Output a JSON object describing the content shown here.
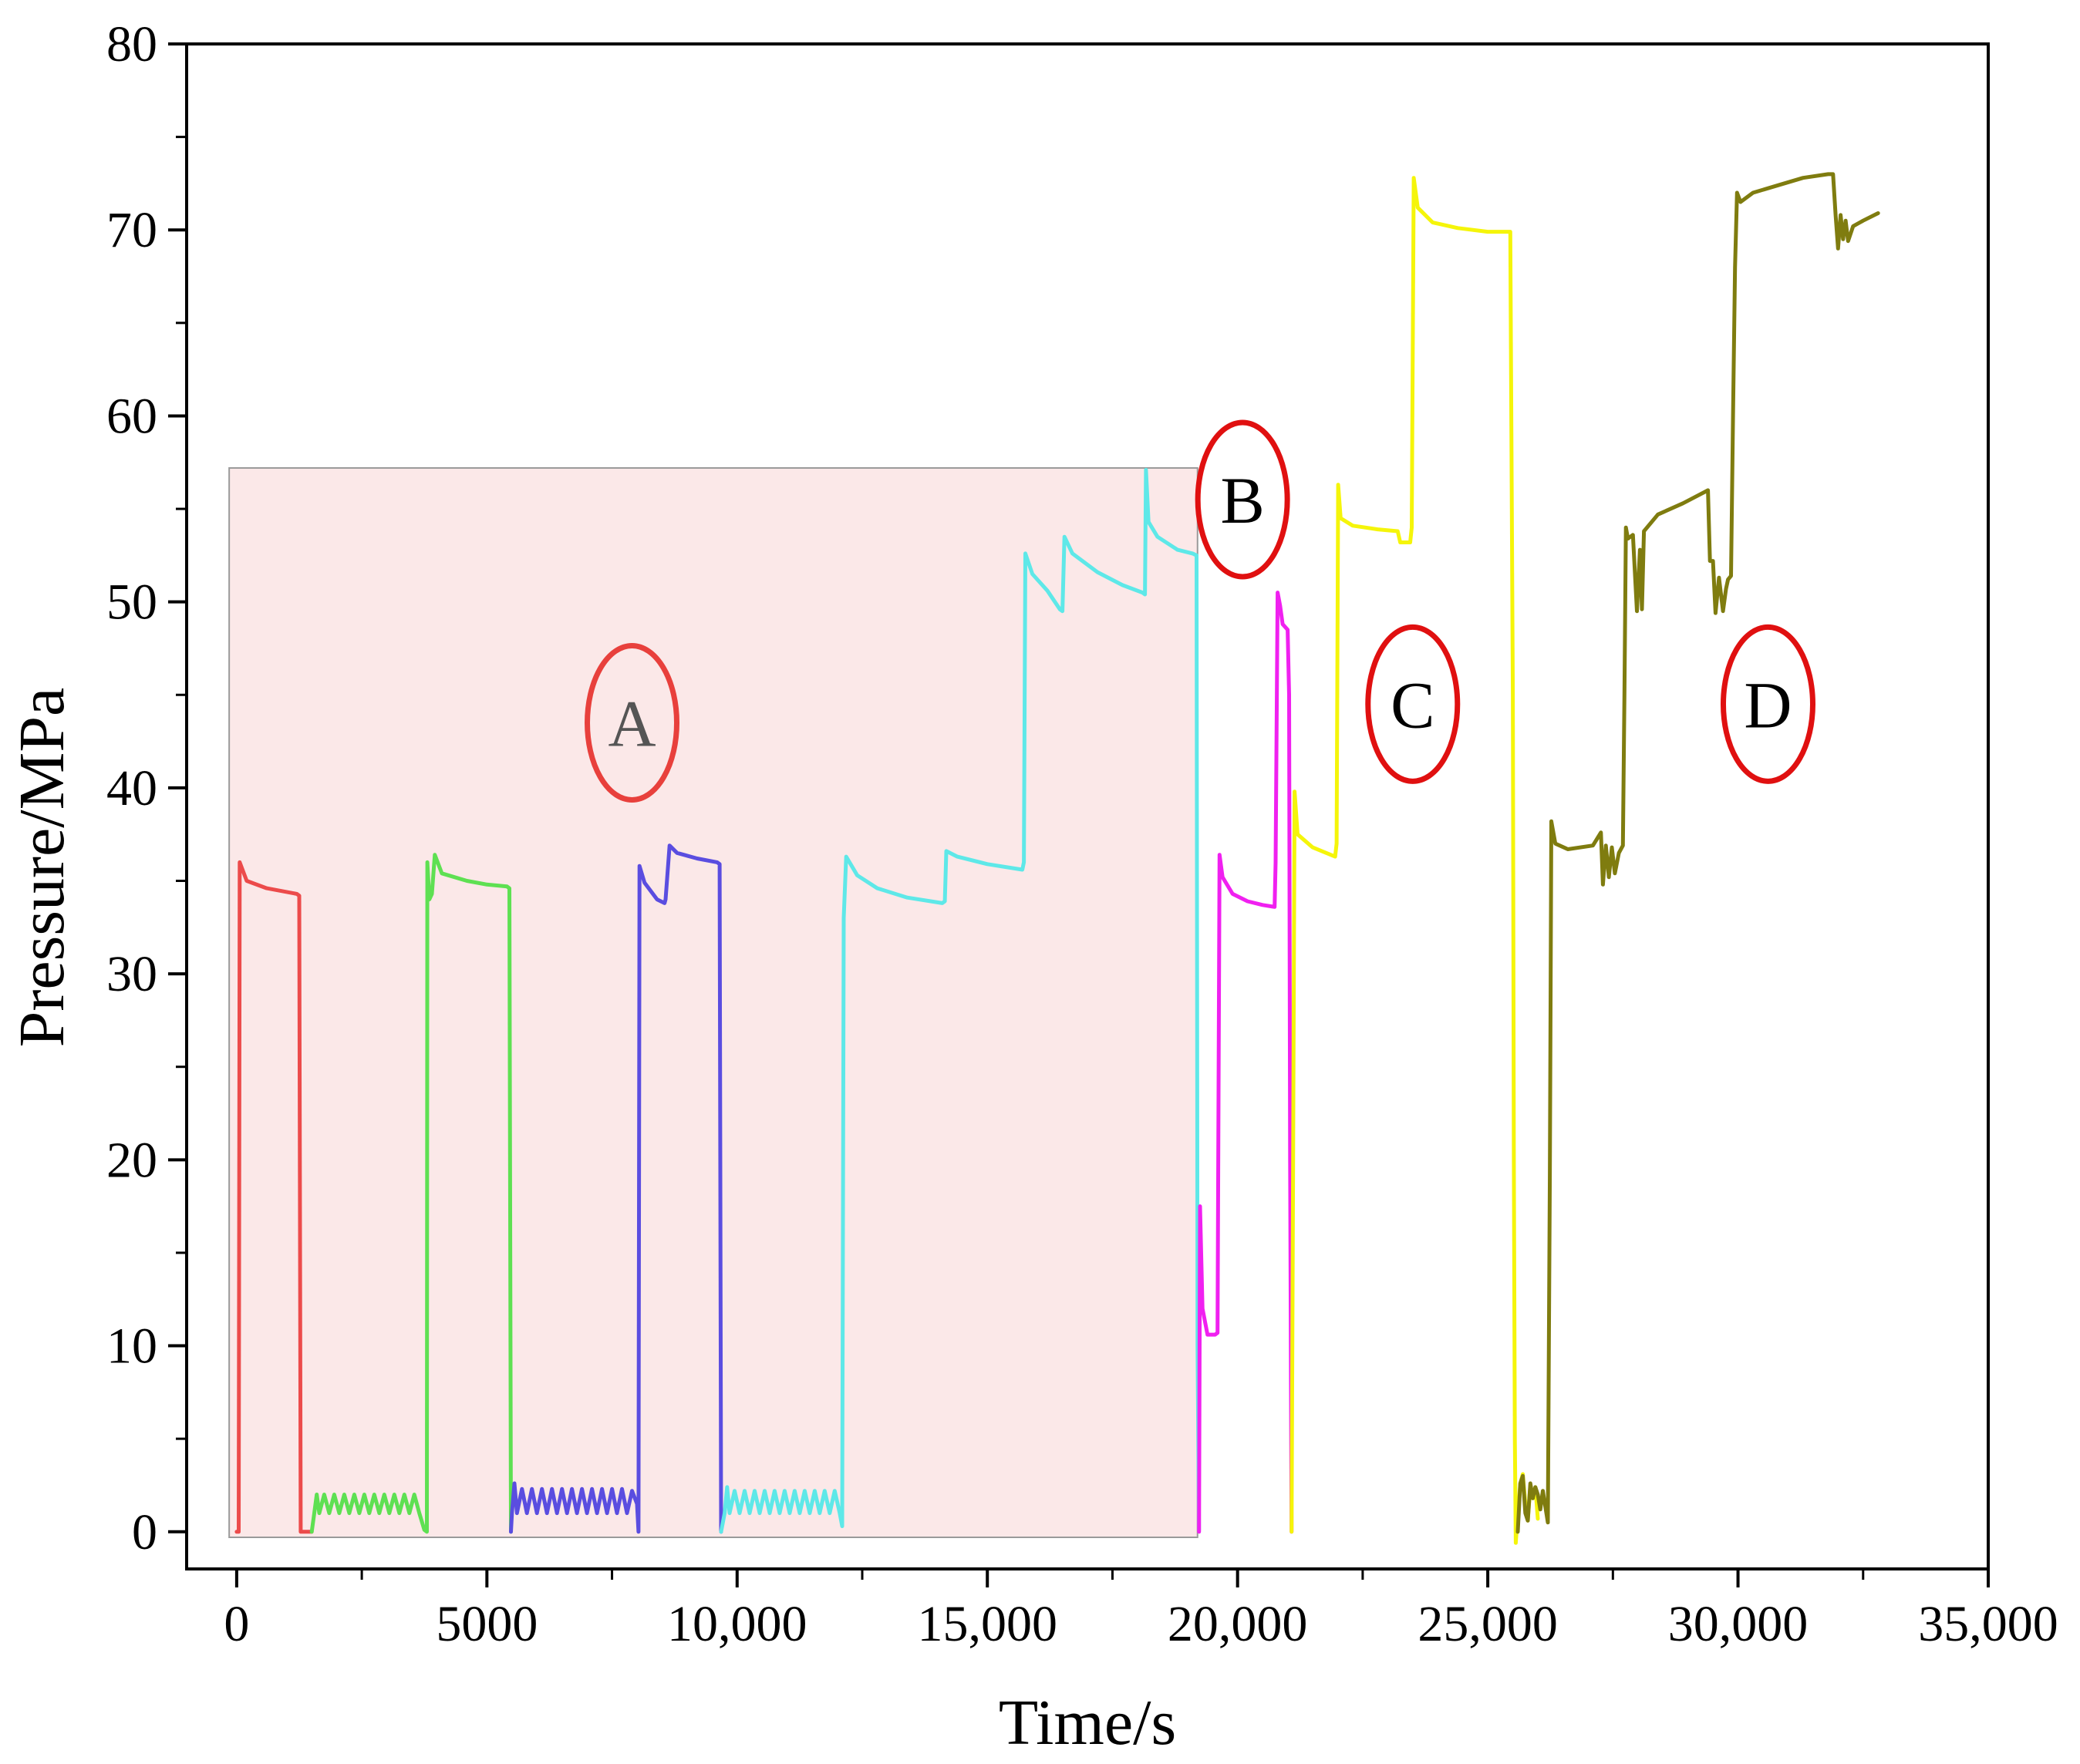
{
  "chart_data": {
    "type": "line",
    "title": "",
    "xlabel": "Time/s",
    "ylabel": "Pressure/MPa",
    "xlim": [
      -1000,
      35000
    ],
    "ylim": [
      -2,
      80
    ],
    "xticks": [
      0,
      5000,
      10000,
      15000,
      20000,
      25000,
      30000,
      35000
    ],
    "xtick_labels": [
      "0",
      "5000",
      "10,000",
      "15,000",
      "20,000",
      "25,000",
      "30,000",
      "35,000"
    ],
    "yticks": [
      0,
      10,
      20,
      30,
      40,
      50,
      60,
      70,
      80
    ],
    "ytick_labels": [
      "0",
      "10",
      "20",
      "30",
      "40",
      "50",
      "60",
      "70",
      "80"
    ],
    "grid": false,
    "legend": "none",
    "shaded_region": {
      "x": [
        -150,
        19200
      ],
      "y": [
        -0.3,
        57.2
      ],
      "color": "#fbe8e8"
    },
    "annotations": [
      {
        "label": "A",
        "x": 7900,
        "y": 43.5,
        "text_color": "#555555",
        "circle_color": "#e8403c"
      },
      {
        "label": "B",
        "x": 20100,
        "y": 55.5,
        "text_color": "#000000",
        "circle_color": "#e01010"
      },
      {
        "label": "C",
        "x": 23500,
        "y": 44.5,
        "text_color": "#000000",
        "circle_color": "#e01010"
      },
      {
        "label": "D",
        "x": 30600,
        "y": 44.5,
        "text_color": "#000000",
        "circle_color": "#e01010"
      }
    ],
    "series": [
      {
        "color": "#ec4b4b",
        "segments": [
          [
            [
              0,
              0
            ],
            [
              40,
              0
            ],
            [
              60,
              36
            ],
            [
              200,
              35
            ],
            [
              600,
              34.6
            ],
            [
              1200,
              34.3
            ],
            [
              1250,
              34.2
            ],
            [
              1280,
              0
            ],
            [
              1500,
              0
            ]
          ]
        ]
      },
      {
        "color": "#5ee052",
        "segments": [
          [
            [
              1500,
              0
            ],
            [
              1550,
              1
            ],
            [
              1600,
              2
            ],
            [
              1650,
              1
            ],
            [
              1750,
              2
            ],
            [
              1850,
              1
            ],
            [
              1950,
              2
            ],
            [
              2050,
              1
            ],
            [
              2150,
              2
            ],
            [
              2250,
              1
            ],
            [
              2350,
              2
            ],
            [
              2450,
              1
            ],
            [
              2550,
              2
            ],
            [
              2650,
              1
            ],
            [
              2750,
              2
            ],
            [
              2850,
              1
            ],
            [
              2950,
              2
            ],
            [
              3050,
              1
            ],
            [
              3150,
              2
            ],
            [
              3250,
              1
            ],
            [
              3350,
              2
            ],
            [
              3450,
              1
            ],
            [
              3550,
              2
            ],
            [
              3650,
              1
            ],
            [
              3750,
              0.1
            ],
            [
              3800,
              0
            ],
            [
              3810,
              36
            ],
            [
              3850,
              34
            ],
            [
              3900,
              34.3
            ],
            [
              3960,
              36.4
            ],
            [
              4100,
              35.4
            ],
            [
              4600,
              35
            ],
            [
              5000,
              34.8
            ],
            [
              5400,
              34.7
            ],
            [
              5450,
              34.6
            ],
            [
              5480,
              0
            ]
          ]
        ]
      },
      {
        "color": "#5a4de0",
        "segments": [
          [
            [
              5480,
              0
            ],
            [
              5500,
              1
            ],
            [
              5550,
              2.6
            ],
            [
              5600,
              1
            ],
            [
              5700,
              2.3
            ],
            [
              5800,
              1
            ],
            [
              5900,
              2.3
            ],
            [
              6000,
              1
            ],
            [
              6100,
              2.3
            ],
            [
              6200,
              1
            ],
            [
              6300,
              2.3
            ],
            [
              6400,
              1
            ],
            [
              6500,
              2.3
            ],
            [
              6600,
              1
            ],
            [
              6700,
              2.3
            ],
            [
              6800,
              1
            ],
            [
              6900,
              2.3
            ],
            [
              7000,
              1
            ],
            [
              7100,
              2.3
            ],
            [
              7200,
              1
            ],
            [
              7300,
              2.3
            ],
            [
              7400,
              1
            ],
            [
              7500,
              2.3
            ],
            [
              7600,
              1
            ],
            [
              7700,
              2.3
            ],
            [
              7800,
              1
            ],
            [
              7900,
              2.2
            ],
            [
              8000,
              1.5
            ],
            [
              8030,
              0
            ],
            [
              8050,
              35.8
            ],
            [
              8150,
              34.9
            ],
            [
              8400,
              34
            ],
            [
              8550,
              33.8
            ],
            [
              8570,
              34
            ],
            [
              8650,
              36.9
            ],
            [
              8800,
              36.5
            ],
            [
              9200,
              36.2
            ],
            [
              9600,
              36
            ],
            [
              9650,
              35.9
            ],
            [
              9680,
              0
            ]
          ]
        ]
      },
      {
        "color": "#5ee8e8",
        "segments": [
          [
            [
              9680,
              0
            ],
            [
              9750,
              1
            ],
            [
              9800,
              2.4
            ],
            [
              9850,
              1
            ],
            [
              9950,
              2.2
            ],
            [
              10050,
              1
            ],
            [
              10150,
              2.2
            ],
            [
              10250,
              1
            ],
            [
              10350,
              2.2
            ],
            [
              10450,
              1
            ],
            [
              10550,
              2.2
            ],
            [
              10650,
              1
            ],
            [
              10750,
              2.2
            ],
            [
              10850,
              1
            ],
            [
              10950,
              2.2
            ],
            [
              11050,
              1
            ],
            [
              11150,
              2.2
            ],
            [
              11250,
              1
            ],
            [
              11350,
              2.2
            ],
            [
              11450,
              1
            ],
            [
              11550,
              2.2
            ],
            [
              11650,
              1
            ],
            [
              11750,
              2.2
            ],
            [
              11850,
              1
            ],
            [
              11950,
              2.2
            ],
            [
              12050,
              1
            ],
            [
              12100,
              0.3
            ],
            [
              12130,
              33
            ],
            [
              12180,
              36.3
            ],
            [
              12400,
              35.3
            ],
            [
              12800,
              34.6
            ],
            [
              13400,
              34.1
            ],
            [
              14100,
              33.8
            ],
            [
              14150,
              33.9
            ],
            [
              14180,
              36.6
            ],
            [
              14400,
              36.3
            ],
            [
              15000,
              35.9
            ],
            [
              15700,
              35.6
            ],
            [
              15730,
              36
            ],
            [
              15760,
              52.6
            ],
            [
              15900,
              51.5
            ],
            [
              16200,
              50.6
            ],
            [
              16450,
              49.6
            ],
            [
              16500,
              49.5
            ],
            [
              16540,
              53.5
            ],
            [
              16700,
              52.6
            ],
            [
              17200,
              51.6
            ],
            [
              17700,
              50.9
            ],
            [
              18100,
              50.5
            ],
            [
              18150,
              50.4
            ],
            [
              18170,
              57.1
            ],
            [
              18220,
              54.3
            ],
            [
              18400,
              53.5
            ],
            [
              18800,
              52.8
            ],
            [
              19100,
              52.6
            ],
            [
              19180,
              52.5
            ],
            [
              19200,
              10
            ],
            [
              19230,
              0.1
            ]
          ]
        ]
      },
      {
        "color": "#f020f0",
        "segments": [
          [
            [
              19230,
              0
            ],
            [
              19250,
              17.5
            ],
            [
              19300,
              12
            ],
            [
              19400,
              10.6
            ],
            [
              19550,
              10.6
            ],
            [
              19600,
              10.7
            ],
            [
              19640,
              36.4
            ],
            [
              19700,
              35.2
            ],
            [
              19900,
              34.3
            ],
            [
              20200,
              33.9
            ],
            [
              20500,
              33.7
            ],
            [
              20740,
              33.6
            ],
            [
              20760,
              36
            ],
            [
              20800,
              50.5
            ],
            [
              20850,
              49.8
            ],
            [
              20900,
              48.8
            ],
            [
              21000,
              48.5
            ],
            [
              21030,
              45
            ],
            [
              21050,
              20
            ],
            [
              21080,
              0
            ]
          ]
        ]
      },
      {
        "color": "#f5f50a",
        "segments": [
          [
            [
              21080,
              0
            ],
            [
              21110,
              20
            ],
            [
              21140,
              39.8
            ],
            [
              21200,
              37.5
            ],
            [
              21500,
              36.8
            ],
            [
              21950,
              36.3
            ],
            [
              21980,
              37
            ],
            [
              22010,
              56.3
            ],
            [
              22060,
              54.5
            ],
            [
              22300,
              54.1
            ],
            [
              22800,
              53.9
            ],
            [
              23200,
              53.8
            ],
            [
              23250,
              53.2
            ],
            [
              23450,
              53.2
            ],
            [
              23480,
              54
            ],
            [
              23520,
              72.8
            ],
            [
              23600,
              71.2
            ],
            [
              23900,
              70.4
            ],
            [
              24400,
              70.1
            ],
            [
              25000,
              69.9
            ],
            [
              25450,
              69.9
            ],
            [
              25500,
              45
            ],
            [
              25520,
              20
            ],
            [
              25540,
              5
            ],
            [
              25560,
              -0.6
            ],
            [
              25600,
              1
            ],
            [
              25650,
              2.6
            ],
            [
              25700,
              3.1
            ],
            [
              25750,
              1.5
            ],
            [
              25800,
              0.6
            ],
            [
              25850,
              2.5
            ],
            [
              25900,
              1.8
            ],
            [
              25950,
              2.4
            ],
            [
              26000,
              0.7
            ]
          ]
        ]
      },
      {
        "color": "#7f7c0f",
        "segments": [
          [
            [
              25600,
              0
            ],
            [
              25650,
              2.6
            ],
            [
              25700,
              3
            ],
            [
              25750,
              1
            ],
            [
              25800,
              0.6
            ],
            [
              25850,
              2.6
            ],
            [
              25900,
              1.8
            ],
            [
              25950,
              2.4
            ],
            [
              26000,
              2
            ],
            [
              26050,
              1.2
            ],
            [
              26100,
              2.2
            ],
            [
              26200,
              0.5
            ],
            [
              26240,
              19.3
            ],
            [
              26270,
              38.2
            ],
            [
              26350,
              37
            ],
            [
              26600,
              36.7
            ],
            [
              27100,
              36.9
            ],
            [
              27260,
              37.6
            ],
            [
              27300,
              34.8
            ],
            [
              27360,
              36.9
            ],
            [
              27420,
              35.2
            ],
            [
              27480,
              36.8
            ],
            [
              27540,
              35.4
            ],
            [
              27620,
              36.5
            ],
            [
              27700,
              36.9
            ],
            [
              27730,
              45
            ],
            [
              27760,
              54
            ],
            [
              27800,
              53.4
            ],
            [
              27900,
              53.6
            ],
            [
              27980,
              49.5
            ],
            [
              28040,
              52.8
            ],
            [
              28080,
              49.6
            ],
            [
              28120,
              53.8
            ],
            [
              28400,
              54.7
            ],
            [
              28900,
              55.3
            ],
            [
              29400,
              56
            ],
            [
              29440,
              52.2
            ],
            [
              29500,
              52.2
            ],
            [
              29550,
              49.4
            ],
            [
              29620,
              51.3
            ],
            [
              29700,
              49.5
            ],
            [
              29760,
              50.7
            ],
            [
              29800,
              51.2
            ],
            [
              29860,
              51.4
            ],
            [
              29900,
              60
            ],
            [
              29940,
              68
            ],
            [
              29980,
              72
            ],
            [
              30050,
              71.5
            ],
            [
              30300,
              72
            ],
            [
              30800,
              72.4
            ],
            [
              31300,
              72.8
            ],
            [
              31800,
              73
            ],
            [
              31900,
              73
            ],
            [
              31950,
              70.8
            ],
            [
              32000,
              69
            ],
            [
              32050,
              70.8
            ],
            [
              32100,
              69.5
            ],
            [
              32150,
              70.5
            ],
            [
              32200,
              69.4
            ],
            [
              32300,
              70.2
            ],
            [
              32500,
              70.5
            ],
            [
              32800,
              70.9
            ]
          ]
        ]
      }
    ]
  }
}
